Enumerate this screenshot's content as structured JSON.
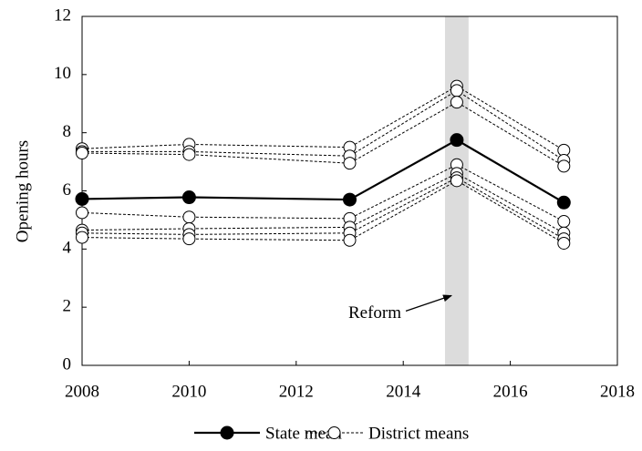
{
  "chart_data": {
    "type": "line",
    "y_label": "Opening hours",
    "x": [
      2008,
      2010,
      2013,
      2015,
      2017
    ],
    "xlim": [
      2008,
      2018
    ],
    "xticks": [
      2008,
      2010,
      2012,
      2014,
      2016,
      2018
    ],
    "ylim": [
      0,
      12
    ],
    "yticks": [
      0,
      2,
      4,
      6,
      8,
      10,
      12
    ],
    "shaded_region": [
      2014.78,
      2015.22
    ],
    "shaded_color": "#dcdcdc",
    "annotation": {
      "text": "Reform",
      "x": 2014.9,
      "y": 2.4
    },
    "series": [
      {
        "name": "State mean",
        "color": "#000000",
        "dashed": false,
        "marker_filled": true,
        "values": [
          5.72,
          5.78,
          5.7,
          7.75,
          5.6
        ]
      },
      {
        "name": "District means",
        "color": "#000000",
        "dashed": true,
        "marker_filled": false,
        "lines": [
          {
            "values": [
              7.45,
              7.6,
              7.5,
              9.6,
              7.4
            ]
          },
          {
            "values": [
              7.35,
              7.35,
              7.2,
              9.45,
              7.05
            ]
          },
          {
            "values": [
              7.3,
              7.25,
              6.95,
              9.05,
              6.85
            ]
          },
          {
            "values": [
              5.25,
              5.1,
              5.05,
              6.9,
              4.95
            ]
          },
          {
            "values": [
              4.65,
              4.7,
              4.75,
              6.6,
              4.55
            ]
          },
          {
            "values": [
              4.55,
              4.5,
              4.55,
              6.45,
              4.35
            ]
          },
          {
            "values": [
              4.4,
              4.35,
              4.3,
              6.35,
              4.2
            ]
          }
        ]
      }
    ]
  }
}
